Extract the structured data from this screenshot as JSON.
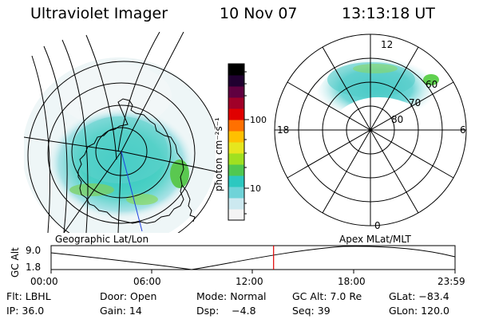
{
  "header": {
    "title": "Ultraviolet Imager",
    "date": "10 Nov 07",
    "time": "13:13:18 UT"
  },
  "colorbar": {
    "label": "photon cm⁻²s⁻¹",
    "ticks": [
      "100",
      "10"
    ],
    "scale": "log",
    "colors": [
      "#f4f4f4",
      "#cce9f0",
      "#6fd3d8",
      "#2cc8c0",
      "#50c850",
      "#a0e020",
      "#e6e61e",
      "#ffc000",
      "#ff7000",
      "#e00000",
      "#a00028",
      "#600040",
      "#200030",
      "#000000"
    ]
  },
  "left_map": {
    "label": "Geographic Lat/Lon"
  },
  "right_map": {
    "label": "Apex MLat/MLT",
    "lat_labels": [
      "60",
      "70",
      "80"
    ],
    "mlt_labels": {
      "top": "12",
      "left": "18",
      "right": "6",
      "bottom": "0"
    }
  },
  "timeline": {
    "ylabel": "GC Alt",
    "y_ticks": [
      "9.0",
      "1.8"
    ],
    "x_ticks": [
      "00:00",
      "06:00",
      "12:00",
      "18:00",
      "23:59"
    ],
    "current_time": "13:13",
    "marker_color": "#e00000"
  },
  "info": {
    "row1": {
      "flt": "Flt: LBHL",
      "door": "Door: Open",
      "mode": "Mode: Normal",
      "gcalt": "GC Alt: 7.0 Re",
      "glat": "GLat: −83.4"
    },
    "row2": {
      "ip": "IP: 36.0",
      "gain": "Gain: 14",
      "dsp": "Dsp:    −4.8",
      "seq": "Seq: 39",
      "glon": "GLon: 120.0"
    }
  }
}
